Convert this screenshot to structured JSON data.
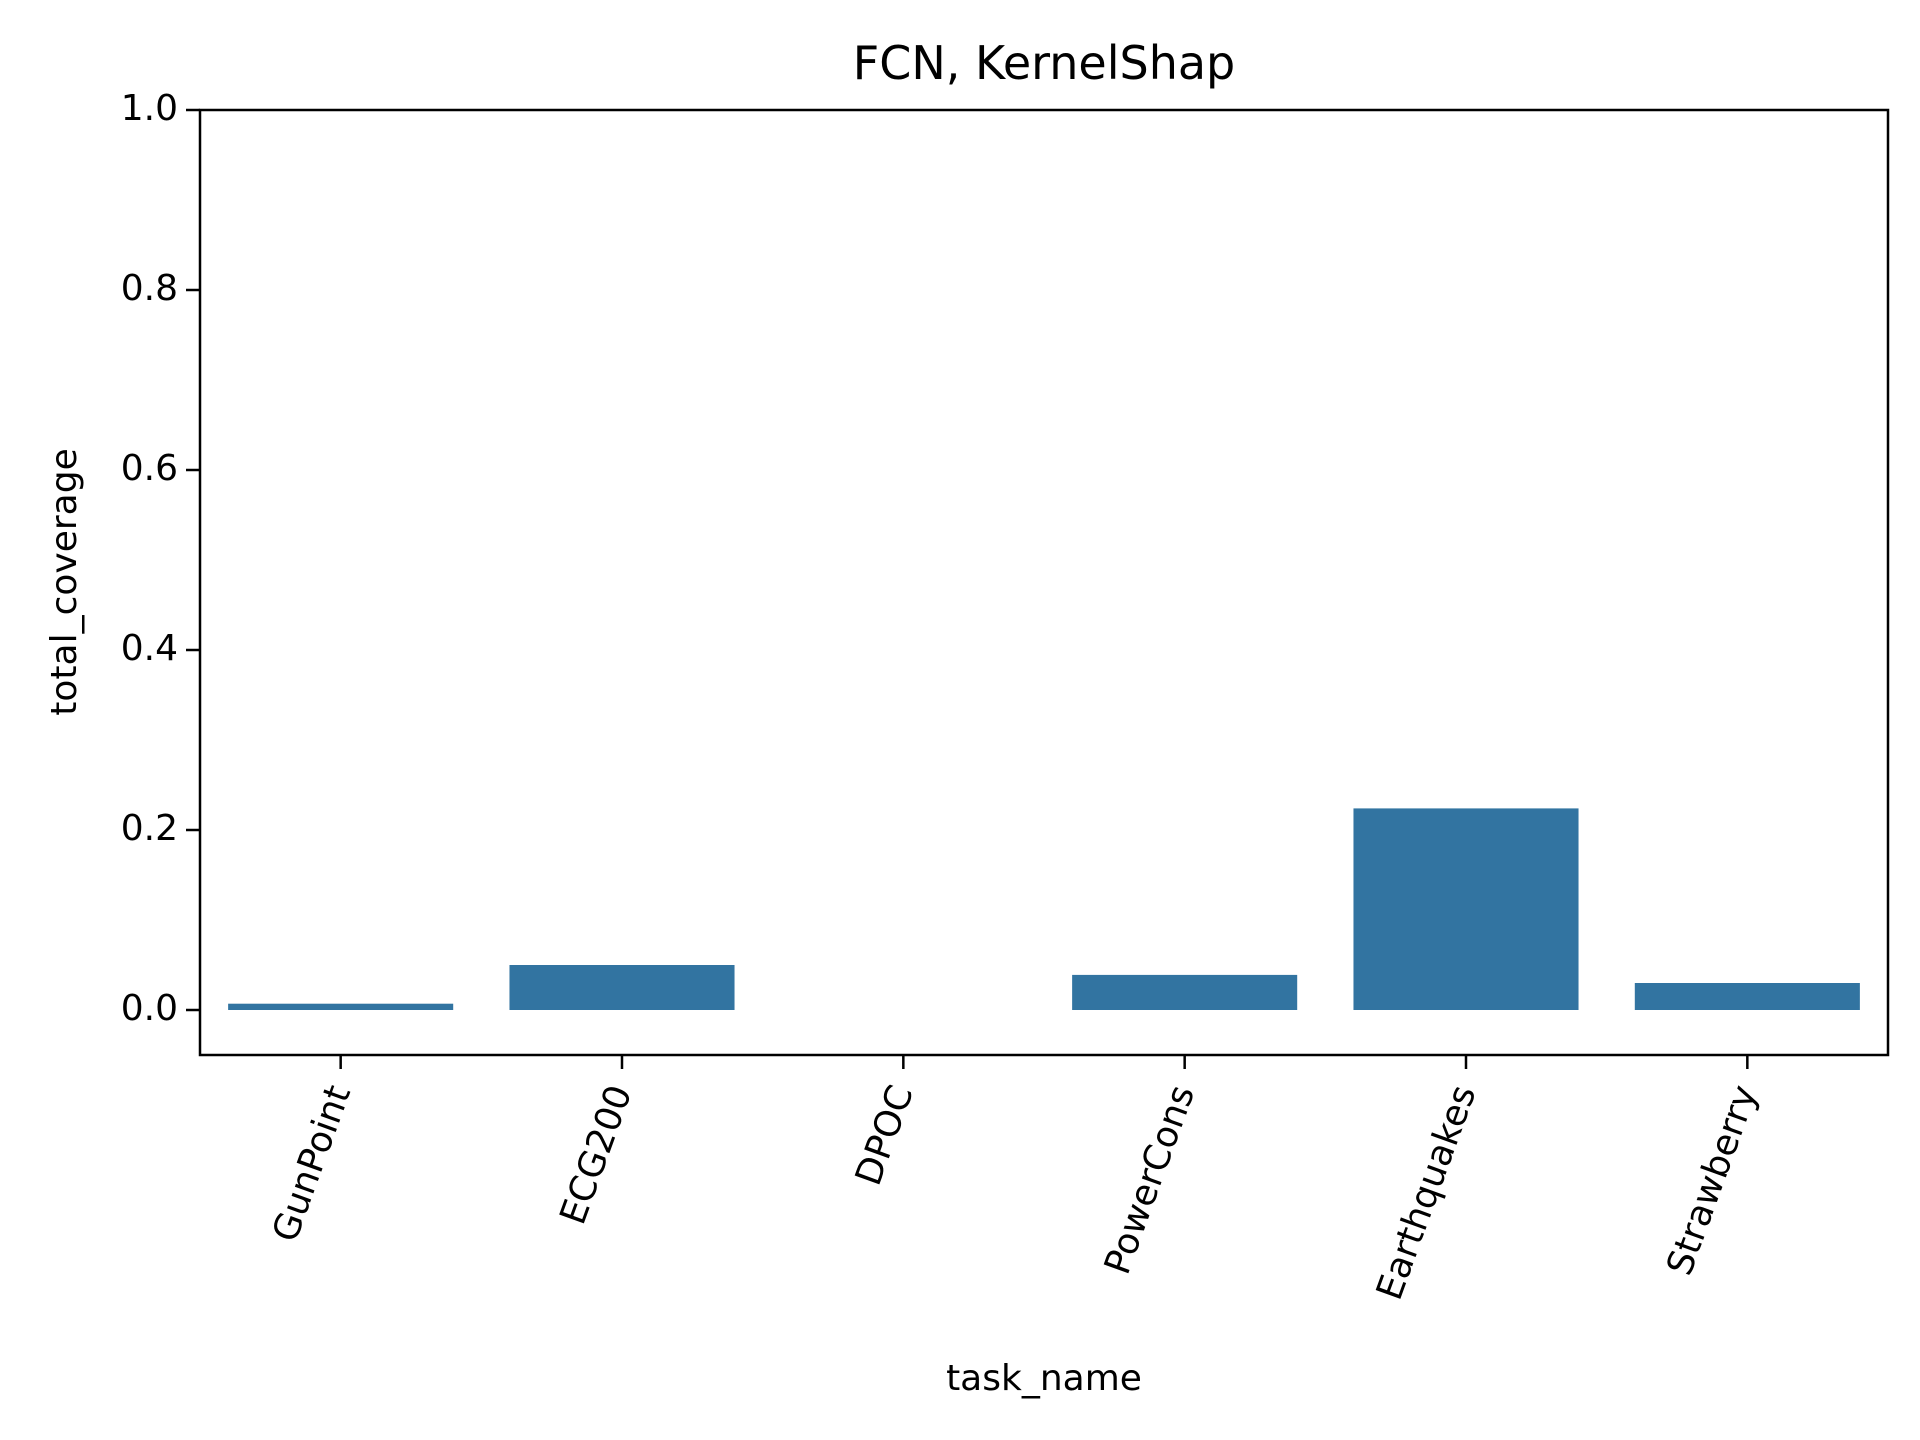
{
  "chart_data": {
    "type": "bar",
    "title": "FCN, KernelShap",
    "xlabel": "task_name",
    "ylabel": "total_coverage",
    "categories": [
      "GunPoint",
      "ECG200",
      "DPOC",
      "PowerCons",
      "Earthquakes",
      "Strawberry"
    ],
    "values": [
      0.007,
      0.05,
      0.0,
      0.039,
      0.224,
      0.03
    ],
    "ylim": [
      -0.05,
      1.0
    ],
    "yticks": [
      0.0,
      0.2,
      0.4,
      0.6,
      0.8,
      1.0
    ],
    "ytick_labels": [
      "0.0",
      "0.2",
      "0.4",
      "0.6",
      "0.8",
      "1.0"
    ],
    "grid": false,
    "bar_color": "#3274a1",
    "xtick_rotation_deg": 70
  }
}
